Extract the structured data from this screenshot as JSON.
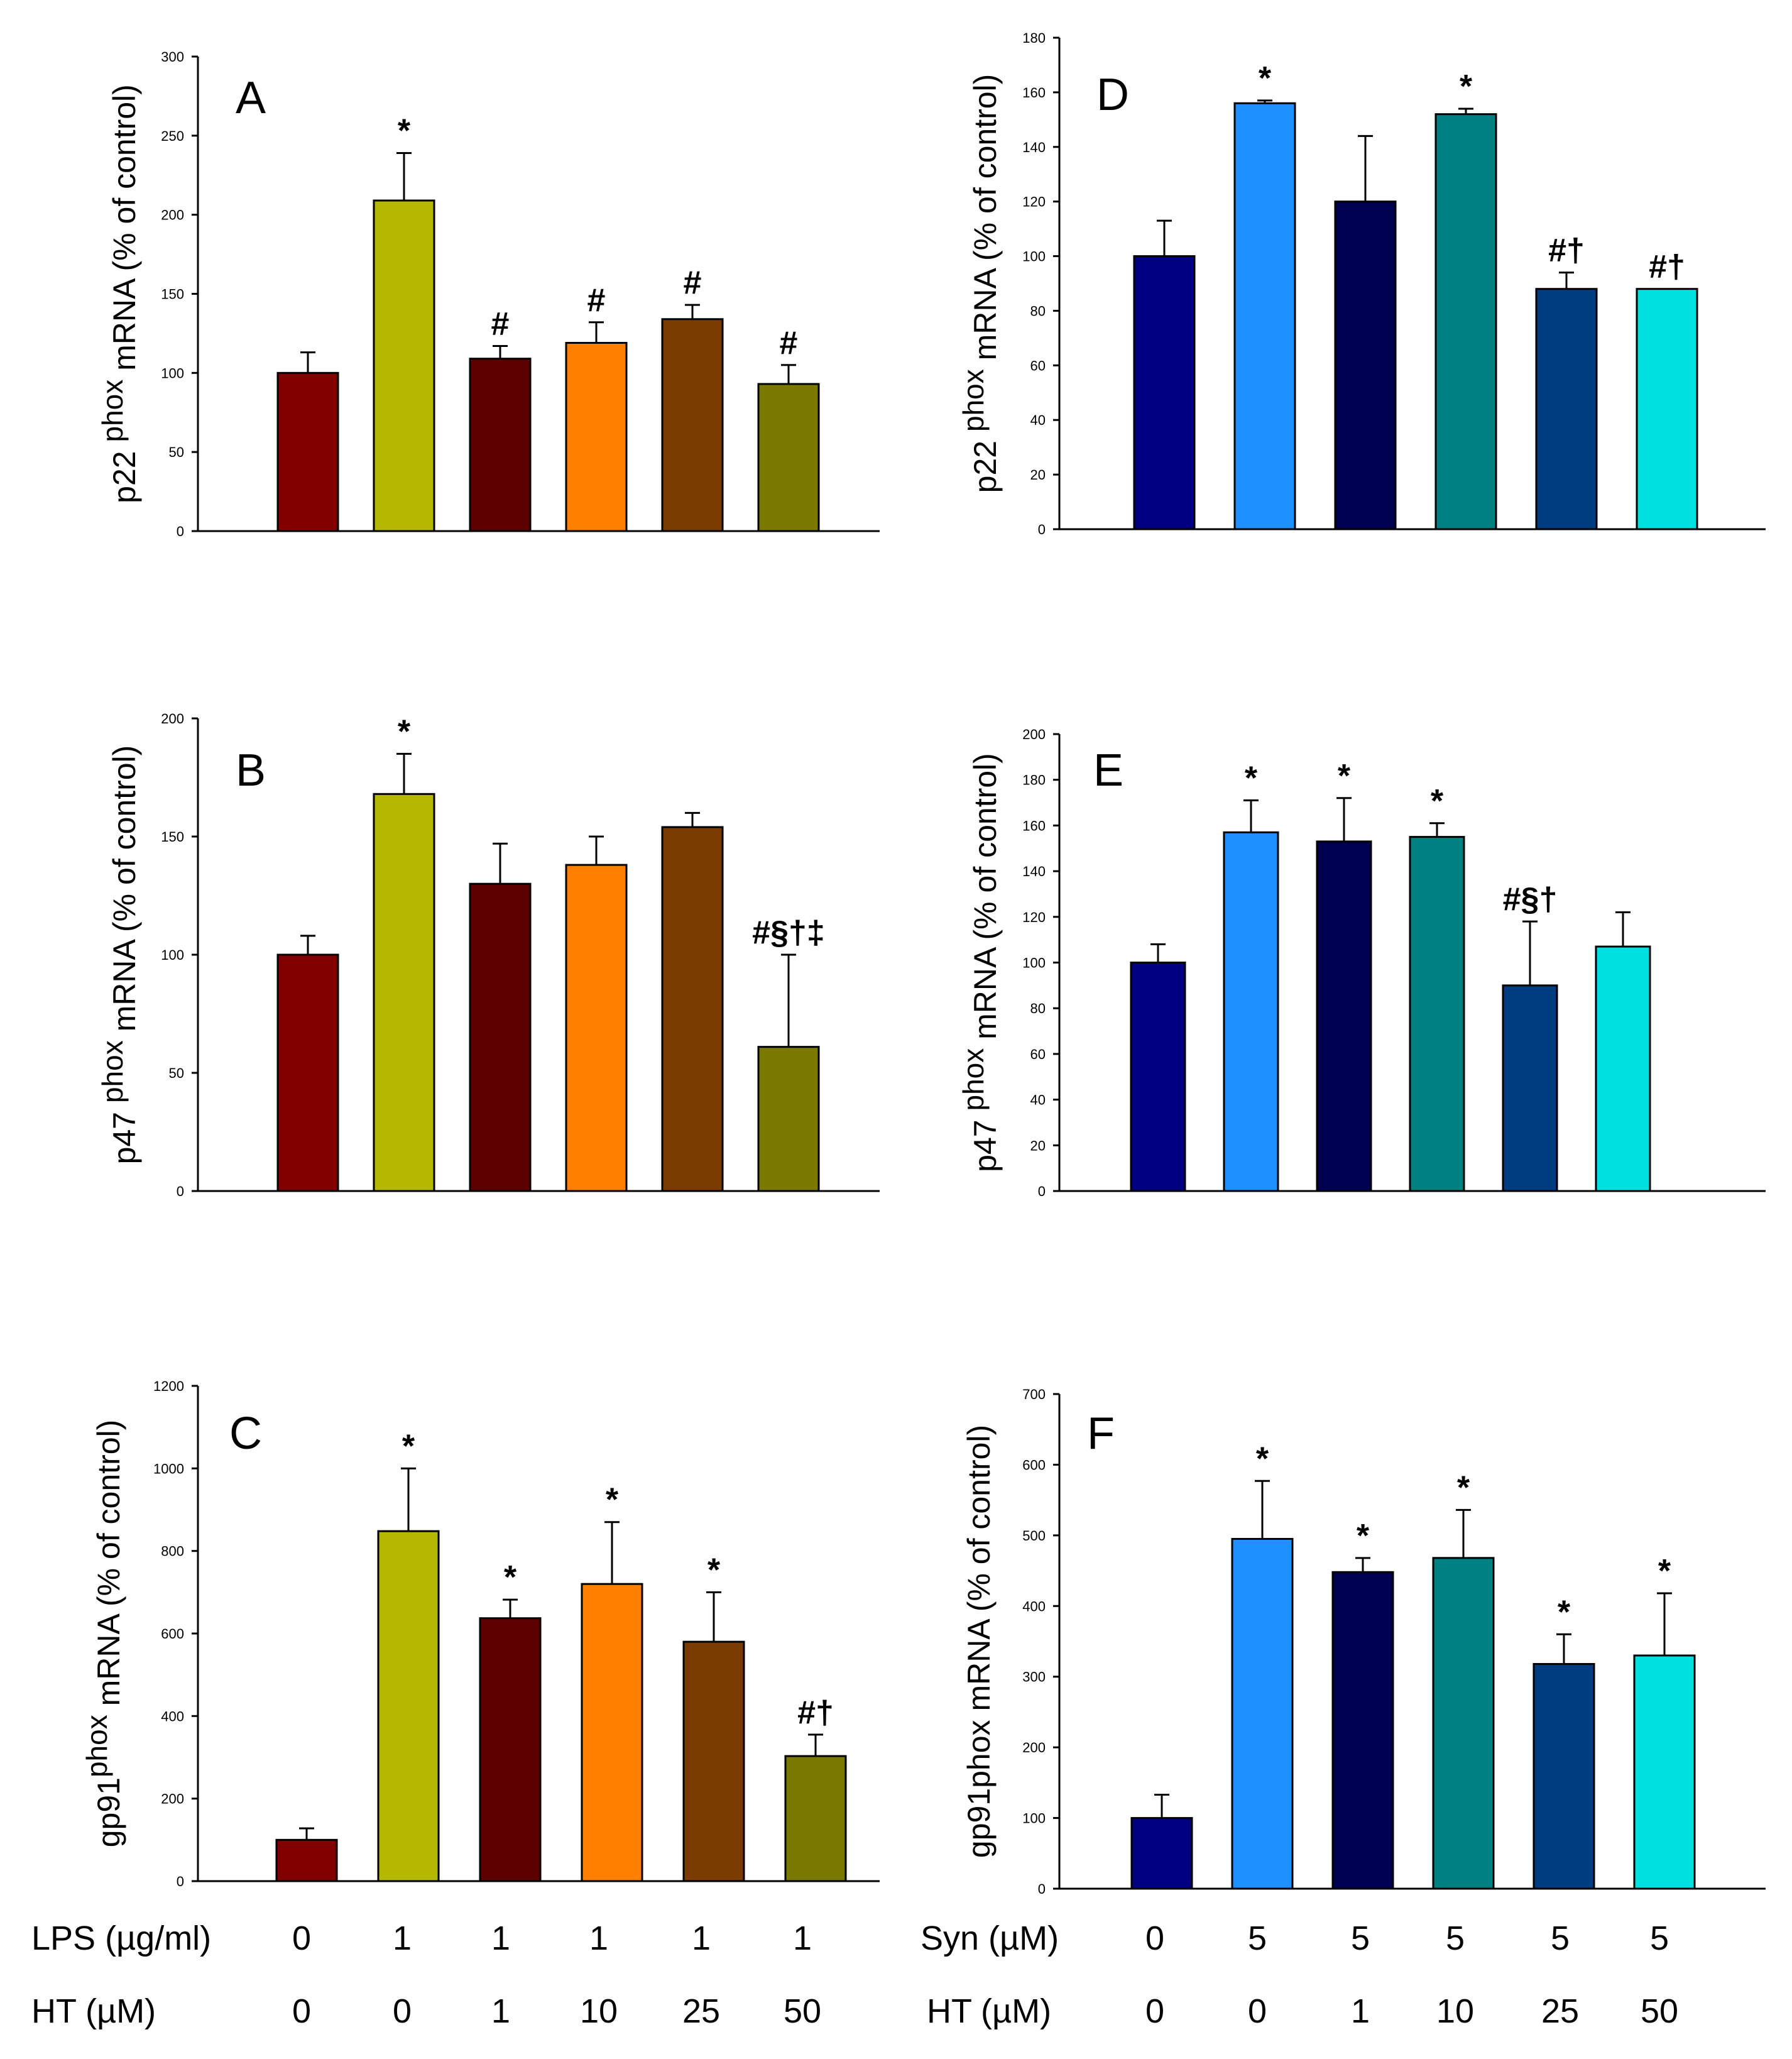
{
  "chart_data": [
    {
      "panel": "A",
      "type": "bar",
      "ylabel": {
        "pre": "p22 ",
        "sup": "phox",
        "post": " mRNA (% of control)"
      },
      "ylim": [
        0,
        300
      ],
      "yticks": [
        0,
        50,
        100,
        150,
        200,
        250,
        300
      ],
      "values": [
        100,
        209,
        109,
        119,
        134,
        93
      ],
      "errors": [
        13,
        30,
        8,
        13,
        9,
        12
      ],
      "annotations": [
        "",
        "*",
        "#",
        "#",
        "#",
        "#"
      ],
      "colors": [
        "#800000",
        "#b5b800",
        "#5c0000",
        "#ff8000",
        "#7a3c00",
        "#7a7a00"
      ]
    },
    {
      "panel": "B",
      "type": "bar",
      "ylabel": {
        "pre": "p47 ",
        "sup": "phox",
        "post": " mRNA (% of control)"
      },
      "ylim": [
        0,
        200
      ],
      "yticks": [
        0,
        50,
        100,
        150,
        200
      ],
      "values": [
        100,
        168,
        130,
        138,
        154,
        61
      ],
      "errors": [
        8,
        17,
        17,
        12,
        6,
        39
      ],
      "annotations": [
        "",
        "*",
        "",
        "",
        "",
        "#§†‡"
      ],
      "colors": [
        "#800000",
        "#b5b800",
        "#5c0000",
        "#ff8000",
        "#7a3c00",
        "#7a7a00"
      ]
    },
    {
      "panel": "C",
      "type": "bar",
      "ylabel": {
        "pre": "gp91",
        "sup": "phox",
        "post": " mRNA (% of control)"
      },
      "ylim": [
        0,
        1200
      ],
      "yticks": [
        0,
        200,
        400,
        600,
        800,
        1000,
        1200
      ],
      "values": [
        100,
        848,
        637,
        720,
        580,
        303
      ],
      "errors": [
        28,
        152,
        45,
        150,
        120,
        52
      ],
      "annotations": [
        "",
        "*",
        "*",
        "*",
        "*",
        "#†"
      ],
      "colors": [
        "#800000",
        "#b5b800",
        "#5c0000",
        "#ff8000",
        "#7a3c00",
        "#7a7a00"
      ]
    },
    {
      "panel": "D",
      "type": "bar",
      "ylabel": {
        "pre": "p22 ",
        "sup": "phox",
        "post": " mRNA (% of control)"
      },
      "ylim": [
        0,
        180
      ],
      "yticks": [
        0,
        20,
        40,
        60,
        80,
        100,
        120,
        140,
        160,
        180
      ],
      "values": [
        100,
        156,
        120,
        152,
        88,
        88
      ],
      "errors": [
        13,
        1,
        24,
        2,
        6,
        0
      ],
      "annotations": [
        "",
        "*",
        "",
        "*",
        "#†",
        "#†"
      ],
      "colors": [
        "#000080",
        "#1e90ff",
        "#000050",
        "#008080",
        "#003c80",
        "#00e0e0"
      ]
    },
    {
      "panel": "E",
      "type": "bar",
      "ylabel": {
        "pre": "p47 ",
        "sup": "phox",
        "post": " mRNA (% of control)"
      },
      "ylim": [
        0,
        200
      ],
      "yticks": [
        0,
        20,
        40,
        60,
        80,
        100,
        120,
        140,
        160,
        180,
        200
      ],
      "values": [
        100,
        157,
        153,
        155,
        90,
        107
      ],
      "errors": [
        8,
        14,
        19,
        6,
        28,
        15
      ],
      "annotations": [
        "",
        "*",
        "*",
        "*",
        "#§†",
        ""
      ],
      "colors": [
        "#000080",
        "#1e90ff",
        "#000050",
        "#008080",
        "#003c80",
        "#00e0e0"
      ]
    },
    {
      "panel": "F",
      "type": "bar",
      "ylabel": {
        "pre": "gp91",
        "sup": "",
        "post": "phox mRNA (% of control)"
      },
      "ylim": [
        0,
        700
      ],
      "yticks": [
        0,
        100,
        200,
        300,
        400,
        500,
        600,
        700
      ],
      "values": [
        100,
        495,
        448,
        468,
        318,
        330
      ],
      "errors": [
        33,
        82,
        20,
        68,
        42,
        88
      ],
      "annotations": [
        "",
        "*",
        "*",
        "*",
        "*",
        "*"
      ],
      "colors": [
        "#000080",
        "#1e90ff",
        "#000050",
        "#008080",
        "#003c80",
        "#00e0e0"
      ]
    }
  ],
  "x_axis_labels": {
    "left": {
      "row1_label": "LPS (µg/ml)",
      "row1_values": [
        "0",
        "1",
        "1",
        "1",
        "1",
        "1"
      ],
      "row2_label": "HT  (µM)",
      "row2_values": [
        "0",
        "0",
        "1",
        "10",
        "25",
        "50"
      ]
    },
    "right": {
      "row1_label": "Syn (µM)",
      "row1_values": [
        "0",
        "5",
        "5",
        "5",
        "5",
        "5"
      ],
      "row2_label": "HT  (µM)",
      "row2_values": [
        "0",
        "0",
        "1",
        "10",
        "25",
        "50"
      ]
    }
  }
}
